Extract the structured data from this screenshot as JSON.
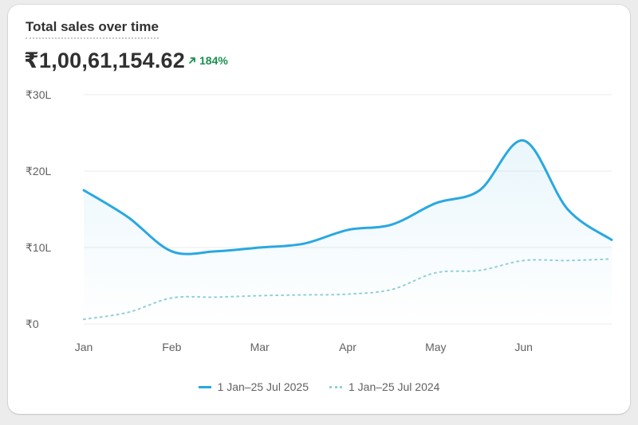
{
  "header": {
    "title": "Total sales over time",
    "total": "₹1,00,61,154.62",
    "change": "184%",
    "change_icon": "arrow-up-right-icon"
  },
  "colors": {
    "current": "#29a8e0",
    "previous": "#8fcfd9",
    "positive": "#1a8f4f",
    "grid": "#ebebeb",
    "axis_text": "#616161"
  },
  "chart_data": {
    "type": "area",
    "title": "Total sales over time",
    "x": [
      "Jan",
      "Feb",
      "Mar",
      "Apr",
      "May",
      "Jun"
    ],
    "x_ticks": [
      "Jan",
      "Feb",
      "Mar",
      "Apr",
      "May",
      "Jun"
    ],
    "y_ticks": [
      "₹0",
      "₹10L",
      "₹20L",
      "₹30L"
    ],
    "y_tick_values": [
      0,
      10,
      20,
      30
    ],
    "ylim": [
      0,
      30
    ],
    "x_range": [
      0,
      6
    ],
    "grid": true,
    "legend_position": "bottom-center",
    "series": [
      {
        "name": "1 Jan–25 Jul 2025",
        "style": "solid",
        "points": [
          {
            "x": 0,
            "y": 17.5
          },
          {
            "x": 0.5,
            "y": 14.0
          },
          {
            "x": 1,
            "y": 9.5
          },
          {
            "x": 1.5,
            "y": 9.5
          },
          {
            "x": 2,
            "y": 10.0
          },
          {
            "x": 2.5,
            "y": 10.5
          },
          {
            "x": 3,
            "y": 12.3
          },
          {
            "x": 3.5,
            "y": 13.0
          },
          {
            "x": 4,
            "y": 15.8
          },
          {
            "x": 4.5,
            "y": 17.5
          },
          {
            "x": 5,
            "y": 24.0
          },
          {
            "x": 5.5,
            "y": 15.0
          },
          {
            "x": 6,
            "y": 11.0
          }
        ]
      },
      {
        "name": "1 Jan–25 Jul 2024",
        "style": "dotted",
        "points": [
          {
            "x": 0,
            "y": 0.6
          },
          {
            "x": 0.5,
            "y": 1.5
          },
          {
            "x": 1,
            "y": 3.4
          },
          {
            "x": 1.5,
            "y": 3.5
          },
          {
            "x": 2,
            "y": 3.7
          },
          {
            "x": 2.5,
            "y": 3.8
          },
          {
            "x": 3,
            "y": 3.9
          },
          {
            "x": 3.5,
            "y": 4.5
          },
          {
            "x": 4,
            "y": 6.7
          },
          {
            "x": 4.5,
            "y": 7.0
          },
          {
            "x": 5,
            "y": 8.3
          },
          {
            "x": 5.5,
            "y": 8.3
          },
          {
            "x": 6,
            "y": 8.5
          }
        ]
      }
    ]
  }
}
